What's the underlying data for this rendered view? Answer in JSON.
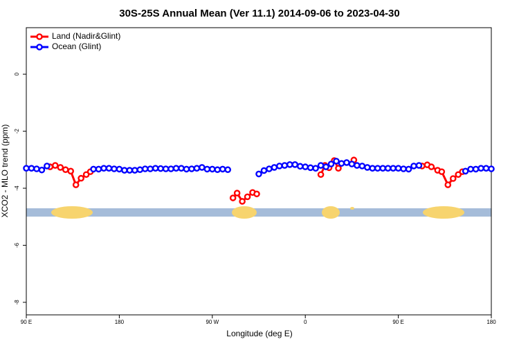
{
  "chart_data": {
    "type": "line",
    "title": "30S-25S Annual Mean (Ver 11.1)   2014-09-06 to 2023-04-30",
    "x_label": "Longitude (deg E)",
    "y_label": "XCO2 - MLO trend (ppm)",
    "xlim": [
      90,
      540
    ],
    "ylim": [
      -8.44,
      1.63
    ],
    "xticks": [
      {
        "value": 90,
        "label": "90 E"
      },
      180,
      {
        "value": 270,
        "label": "90 W"
      },
      {
        "value": 360,
        "label": "0"
      },
      {
        "value": 450,
        "label": "90 E"
      },
      {
        "value": 540,
        "label": "180"
      }
    ],
    "yticks": [
      0,
      -2,
      -4,
      -6,
      -8
    ],
    "legend": "top-left",
    "series": [
      {
        "name": "Land (Nadir&Glint)",
        "color": "#ff0000",
        "x": [
          113,
          118,
          123,
          128,
          133,
          138,
          143,
          148,
          152,
          155,
          290,
          294,
          299,
          304,
          309,
          313,
          340,
          375,
          379,
          383,
          388,
          392,
          400,
          407,
          440,
          473,
          478,
          482,
          488,
          492,
          498,
          503,
          508,
          512
        ],
        "values": [
          -3.25,
          -3.2,
          -3.27,
          -3.35,
          -3.4,
          -3.88,
          -3.65,
          -3.52,
          -3.42,
          null,
          -4.34,
          -4.17,
          -4.46,
          -4.3,
          -4.15,
          -4.2,
          null,
          -3.52,
          -3.2,
          -3.28,
          -3.03,
          -3.3,
          null,
          -3.01,
          null,
          -3.22,
          -3.18,
          -3.25,
          -3.37,
          -3.42,
          -3.88,
          -3.66,
          -3.52,
          -3.42
        ]
      },
      {
        "name": "Ocean (Glint)",
        "color": "#0000ff",
        "x": [
          90,
          95,
          100,
          105,
          110,
          115,
          120,
          125,
          130,
          135,
          140,
          145,
          150,
          155,
          160,
          165,
          170,
          175,
          180,
          185,
          190,
          195,
          200,
          205,
          210,
          215,
          220,
          225,
          230,
          235,
          240,
          245,
          250,
          255,
          260,
          265,
          270,
          275,
          280,
          285,
          290,
          295,
          300,
          305,
          310,
          315,
          320,
          325,
          330,
          335,
          340,
          345,
          350,
          355,
          360,
          365,
          370,
          375,
          380,
          385,
          390,
          395,
          400,
          405,
          410,
          415,
          420,
          425,
          430,
          435,
          440,
          445,
          450,
          455,
          460,
          465,
          470,
          475,
          480,
          485,
          490,
          495,
          500,
          505,
          510,
          515,
          520,
          525,
          530,
          535,
          540
        ],
        "values": [
          -3.3,
          -3.3,
          -3.32,
          -3.36,
          -3.22,
          null,
          null,
          null,
          null,
          null,
          null,
          null,
          null,
          -3.33,
          -3.33,
          -3.3,
          -3.3,
          -3.32,
          -3.33,
          -3.37,
          -3.37,
          -3.37,
          -3.35,
          -3.32,
          -3.32,
          -3.3,
          -3.31,
          -3.32,
          -3.32,
          -3.3,
          -3.3,
          -3.33,
          -3.32,
          -3.3,
          -3.27,
          -3.33,
          -3.33,
          -3.35,
          -3.33,
          -3.35,
          null,
          null,
          null,
          null,
          null,
          -3.5,
          -3.38,
          -3.32,
          -3.27,
          -3.22,
          -3.2,
          -3.17,
          -3.17,
          -3.23,
          -3.25,
          -3.28,
          -3.3,
          -3.2,
          -3.25,
          -3.15,
          -3.05,
          -3.13,
          -3.1,
          -3.15,
          -3.2,
          -3.22,
          -3.27,
          -3.3,
          -3.3,
          -3.3,
          -3.3,
          -3.3,
          -3.3,
          -3.32,
          -3.33,
          -3.22,
          -3.2,
          null,
          null,
          null,
          null,
          null,
          null,
          null,
          null,
          -3.4,
          -3.33,
          -3.33,
          -3.3,
          -3.3,
          -3.32
        ]
      }
    ]
  }
}
